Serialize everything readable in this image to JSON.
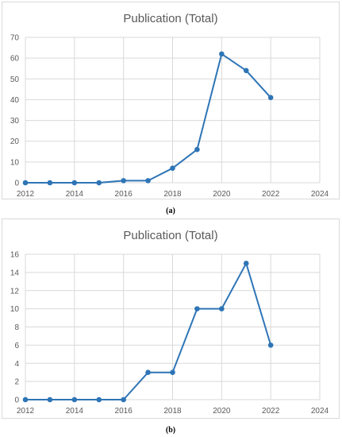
{
  "chart_data": [
    {
      "type": "line",
      "title": "Publication (Total)",
      "caption": "(a)",
      "caption_letter": "a",
      "x": [
        2012,
        2013,
        2014,
        2015,
        2016,
        2017,
        2018,
        2019,
        2020,
        2021,
        2022
      ],
      "series": [
        {
          "values": [
            0,
            0,
            0,
            0,
            1,
            1,
            7,
            16,
            62,
            54,
            41
          ]
        }
      ],
      "xlim": [
        2012,
        2024
      ],
      "ylim": [
        0,
        70
      ],
      "xticks": [
        "2012",
        "2014",
        "2016",
        "2018",
        "2020",
        "2022",
        "2024"
      ],
      "yticks": [
        "0",
        "10",
        "20",
        "30",
        "40",
        "50",
        "60",
        "70"
      ],
      "grid": true,
      "color": "#2e75b6"
    },
    {
      "type": "line",
      "title": "Publication (Total)",
      "caption": "(b)",
      "caption_letter": "b",
      "x": [
        2012,
        2013,
        2014,
        2015,
        2016,
        2017,
        2018,
        2019,
        2020,
        2021,
        2022
      ],
      "series": [
        {
          "values": [
            0,
            0,
            0,
            0,
            0,
            3,
            3,
            10,
            10,
            15,
            6
          ]
        }
      ],
      "xlim": [
        2012,
        2024
      ],
      "ylim": [
        0,
        16
      ],
      "xticks": [
        "2012",
        "2014",
        "2016",
        "2018",
        "2020",
        "2022",
        "2024"
      ],
      "yticks": [
        "0",
        "2",
        "4",
        "6",
        "8",
        "10",
        "12",
        "14",
        "16"
      ],
      "grid": true,
      "color": "#2e75b6"
    }
  ]
}
